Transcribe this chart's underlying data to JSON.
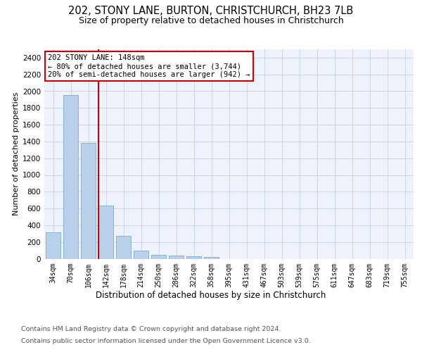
{
  "title": "202, STONY LANE, BURTON, CHRISTCHURCH, BH23 7LB",
  "subtitle": "Size of property relative to detached houses in Christchurch",
  "xlabel": "Distribution of detached houses by size in Christchurch",
  "ylabel": "Number of detached properties",
  "categories": [
    "34sqm",
    "70sqm",
    "106sqm",
    "142sqm",
    "178sqm",
    "214sqm",
    "250sqm",
    "286sqm",
    "322sqm",
    "358sqm",
    "395sqm",
    "431sqm",
    "467sqm",
    "503sqm",
    "539sqm",
    "575sqm",
    "611sqm",
    "647sqm",
    "683sqm",
    "719sqm",
    "755sqm"
  ],
  "values": [
    315,
    1950,
    1380,
    635,
    270,
    100,
    48,
    40,
    28,
    20,
    0,
    0,
    0,
    0,
    0,
    0,
    0,
    0,
    0,
    0,
    0
  ],
  "bar_color": "#b8d0ea",
  "bar_edge_color": "#6aa0cc",
  "vline_color": "#cc0000",
  "vline_x": 2.57,
  "annotation_line1": "202 STONY LANE: 148sqm",
  "annotation_line2": "← 80% of detached houses are smaller (3,744)",
  "annotation_line3": "20% of semi-detached houses are larger (942) →",
  "ylim_max": 2500,
  "yticks": [
    0,
    200,
    400,
    600,
    800,
    1000,
    1200,
    1400,
    1600,
    1800,
    2000,
    2200,
    2400
  ],
  "footer_line1": "Contains HM Land Registry data © Crown copyright and database right 2024.",
  "footer_line2": "Contains public sector information licensed under the Open Government Licence v3.0.",
  "bg_color": "#eef2fb",
  "grid_color": "#c8d0e4"
}
